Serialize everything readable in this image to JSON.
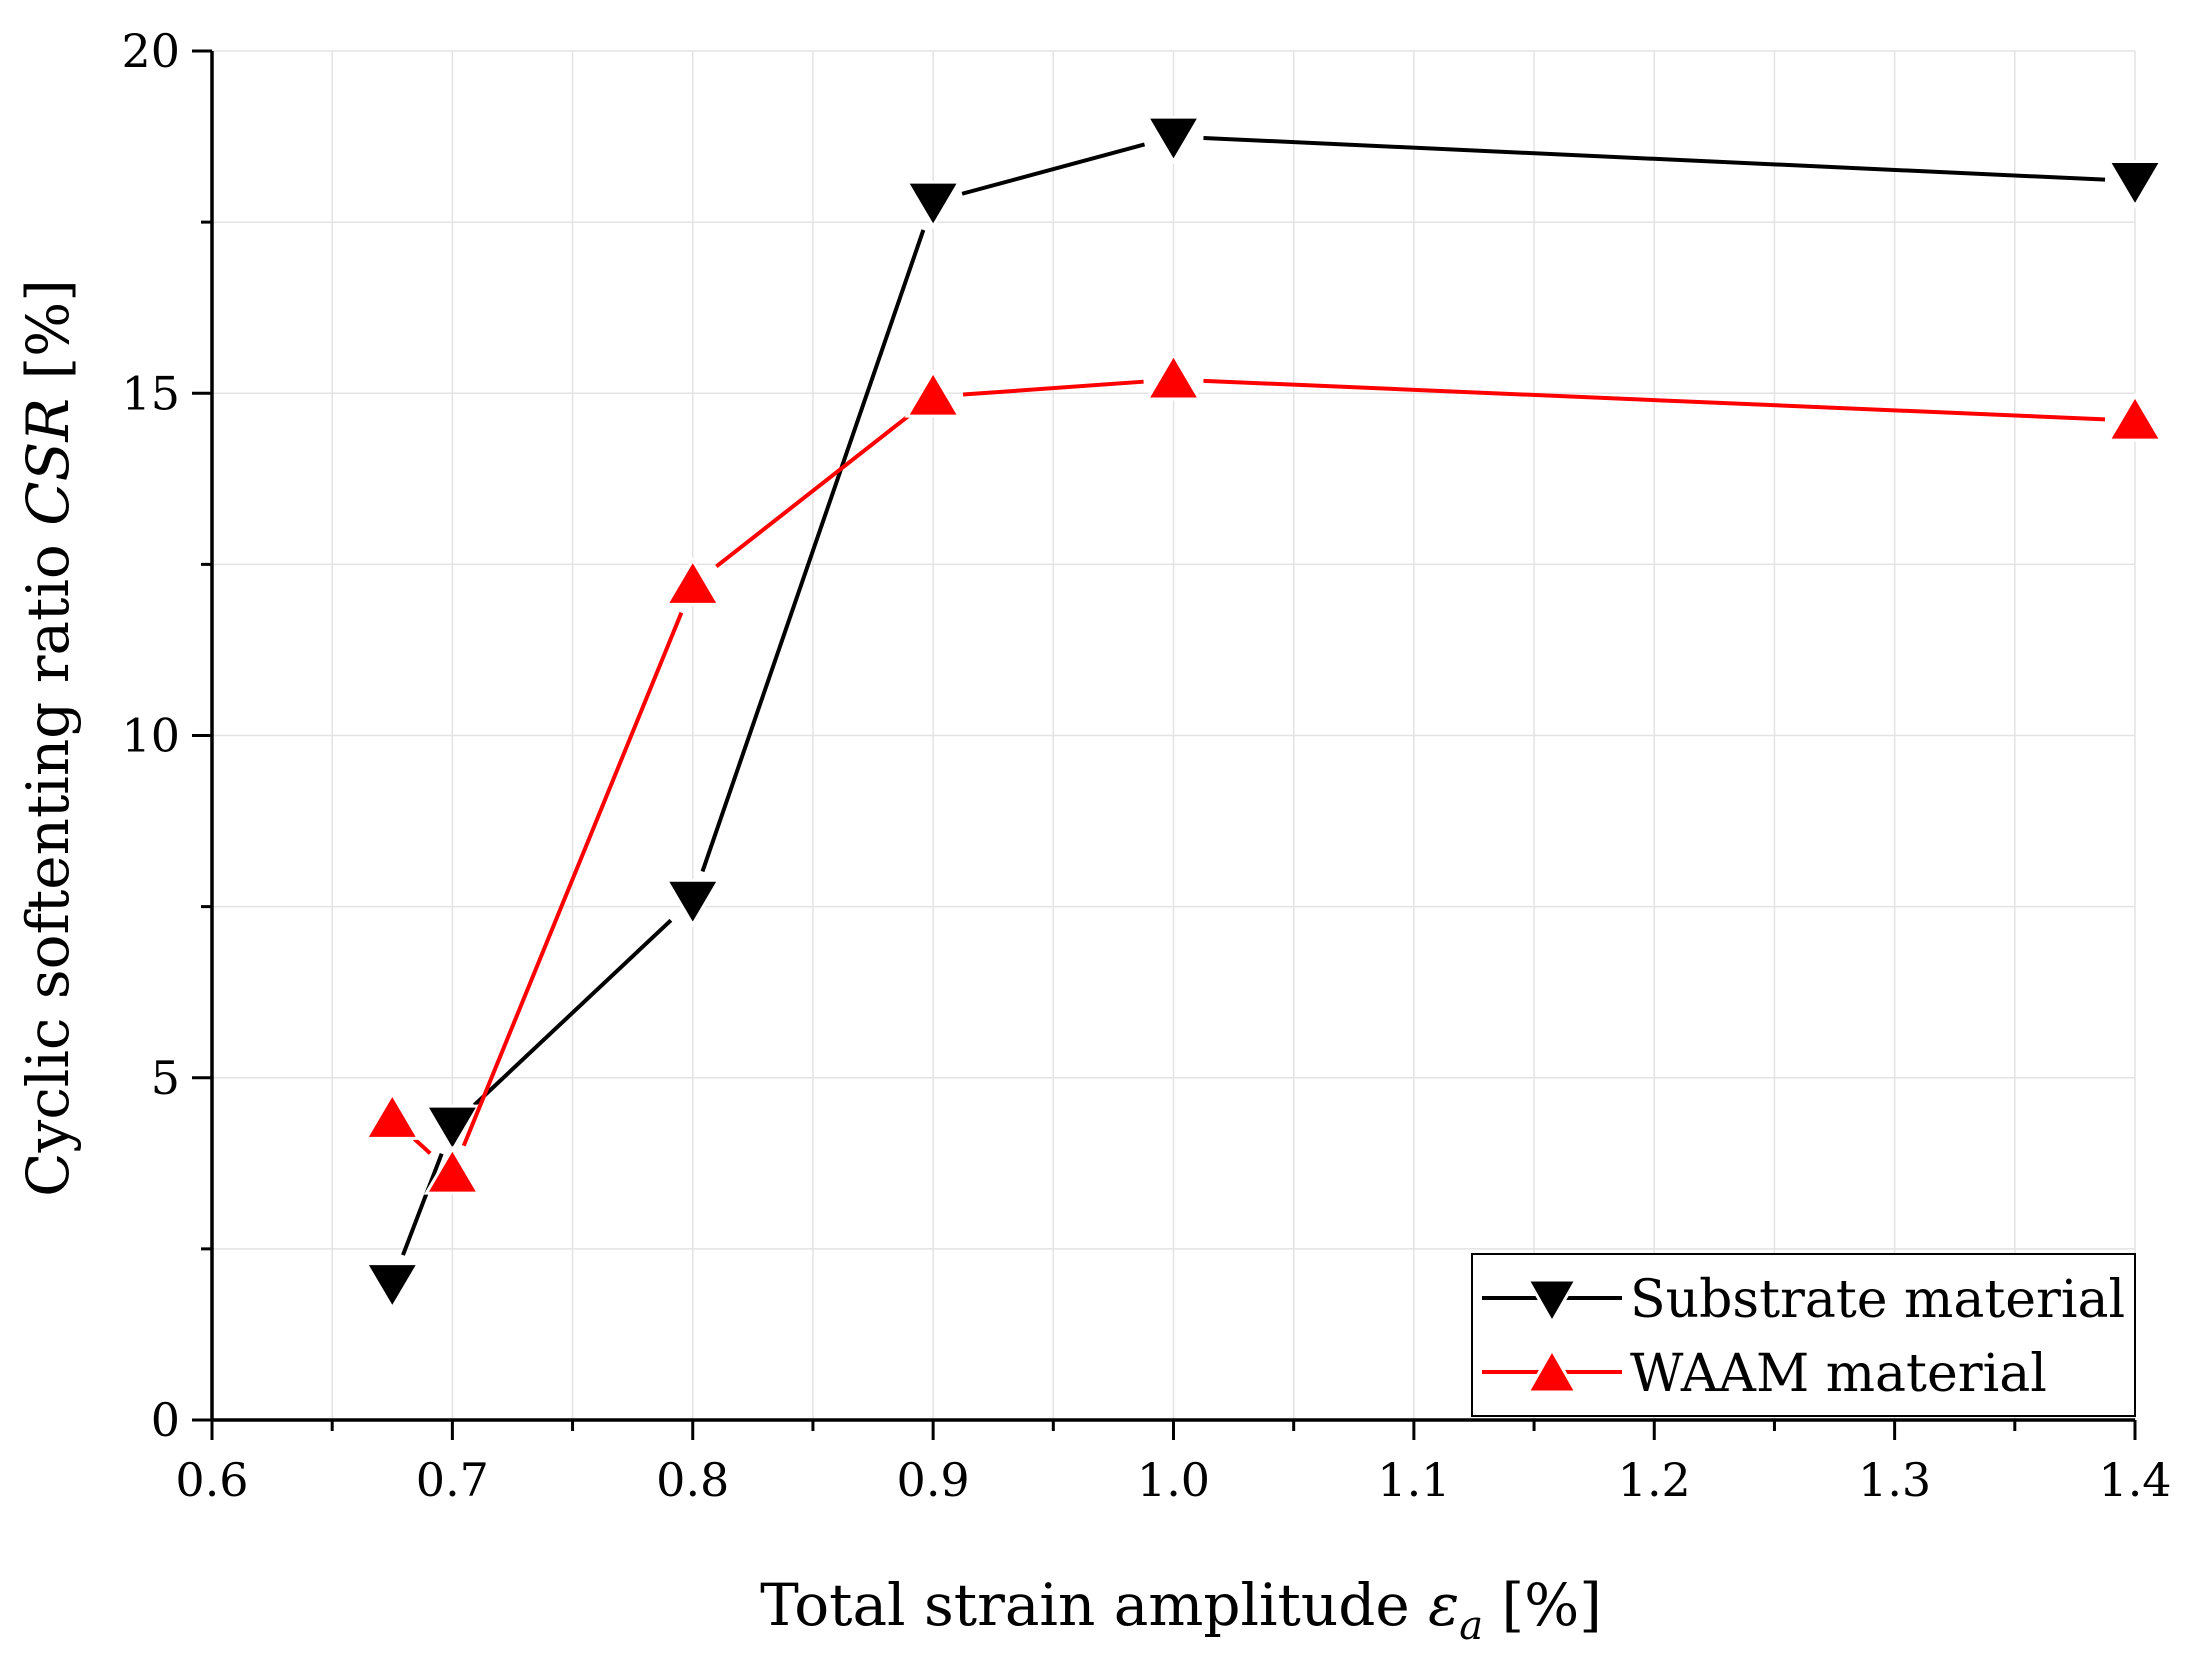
{
  "chart_data": {
    "type": "line",
    "title": "",
    "xlabel": {
      "prefix": "Total strain amplitude ",
      "symbol": "ε",
      "subscript": "a",
      "unit": " [%]"
    },
    "ylabel": {
      "prefix": "Cyclic softenting ratio ",
      "symbol": "CSR",
      "unit": " [%]"
    },
    "xlim": [
      0.6,
      1.4
    ],
    "ylim": [
      0,
      20
    ],
    "xticks": [
      0.6,
      0.7,
      0.8,
      0.9,
      1.0,
      1.1,
      1.2,
      1.3,
      1.4
    ],
    "xtick_labels": [
      "0.6",
      "0.7",
      "0.8",
      "0.9",
      "1.0",
      "1.1",
      "1.2",
      "1.3",
      "1.4"
    ],
    "yticks": [
      0,
      5,
      10,
      15,
      20
    ],
    "ytick_labels": [
      "0",
      "5",
      "10",
      "15",
      "20"
    ],
    "grid": true,
    "legend_position": "bottom-right",
    "series": [
      {
        "name": "Substrate material",
        "color": "#000000",
        "marker": "triangle-down",
        "x": [
          0.675,
          0.7,
          0.8,
          0.9,
          1.0,
          1.4
        ],
        "y": [
          2.0,
          4.3,
          7.6,
          17.8,
          18.75,
          18.1
        ]
      },
      {
        "name": "WAAM material",
        "color": "#ff0000",
        "marker": "triangle-up",
        "x": [
          0.675,
          0.7,
          0.8,
          0.9,
          1.0,
          1.4
        ],
        "y": [
          4.4,
          3.6,
          12.2,
          14.95,
          15.2,
          14.6
        ]
      }
    ]
  }
}
